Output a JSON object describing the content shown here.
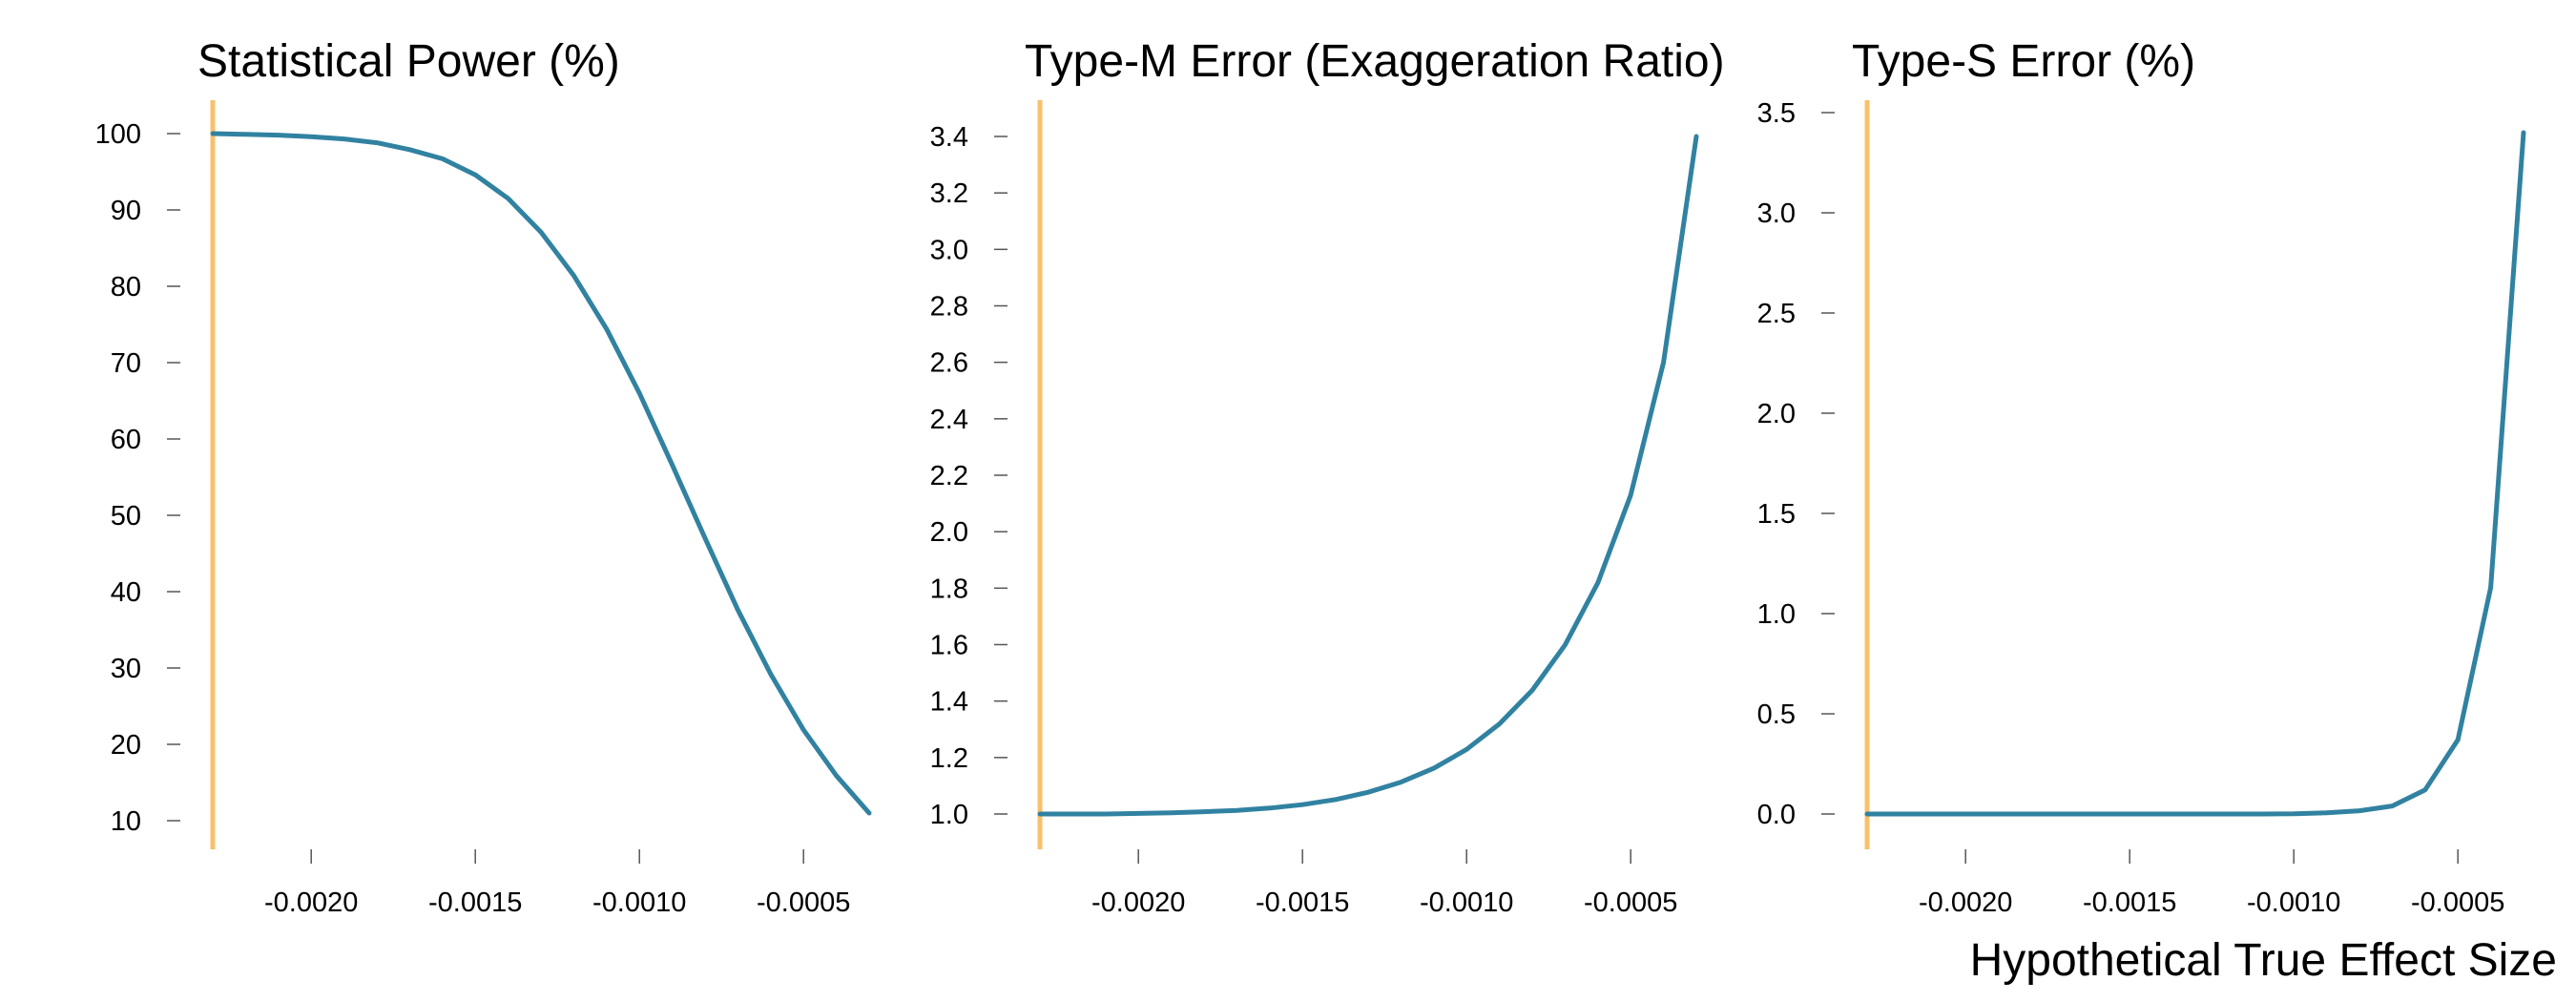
{
  "colors": {
    "series": "#3182A1",
    "reference": "#F9C06B"
  },
  "shared_x": {
    "label": "Hypothetical True Effect Size",
    "reference_value": -0.0023,
    "tick_labels": [
      "-0.0020",
      "-0.0015",
      "-0.0010",
      "-0.0005"
    ],
    "tick_values": [
      -0.002,
      -0.0015,
      -0.001,
      -0.0005
    ]
  },
  "chart_data": [
    {
      "type": "line",
      "title": "Statistical Power (%)",
      "xlim": [
        -0.0023,
        -0.0003
      ],
      "ylim": [
        10,
        100
      ],
      "y_tick_values": [
        10,
        20,
        30,
        40,
        50,
        60,
        70,
        80,
        90,
        100
      ],
      "y_tick_labels": [
        "10",
        "20",
        "30",
        "40",
        "50",
        "60",
        "70",
        "80",
        "90",
        "100"
      ],
      "x": [
        -0.0023,
        -0.0022,
        -0.0021,
        -0.002,
        -0.0019,
        -0.0018,
        -0.0017,
        -0.0016,
        -0.0015,
        -0.0014,
        -0.0013,
        -0.0012,
        -0.0011,
        -0.001,
        -0.0009,
        -0.0008,
        -0.0007,
        -0.0006,
        -0.0005,
        -0.0004,
        -0.0003
      ],
      "y": [
        100,
        99.9,
        99.8,
        99.6,
        99.3,
        98.8,
        97.9,
        96.7,
        94.6,
        91.5,
        87.1,
        81.4,
        74.4,
        66,
        56.6,
        47,
        37.6,
        29.2,
        21.9,
        15.9,
        11
      ]
    },
    {
      "type": "line",
      "title": "Type-M Error (Exaggeration Ratio)",
      "xlim": [
        -0.0023,
        -0.0003
      ],
      "ylim": [
        1.0,
        3.4
      ],
      "y_tick_values": [
        1.0,
        1.2,
        1.4,
        1.6,
        1.8,
        2.0,
        2.2,
        2.4,
        2.6,
        2.8,
        3.0,
        3.2,
        3.4
      ],
      "y_tick_labels": [
        "1.0",
        "1.2",
        "1.4",
        "1.6",
        "1.8",
        "2.0",
        "2.2",
        "2.4",
        "2.6",
        "2.8",
        "3.0",
        "3.2",
        "3.4"
      ],
      "x": [
        -0.0023,
        -0.0022,
        -0.0021,
        -0.002,
        -0.0019,
        -0.0018,
        -0.0017,
        -0.0016,
        -0.0015,
        -0.0014,
        -0.0013,
        -0.0012,
        -0.0011,
        -0.001,
        -0.0009,
        -0.0008,
        -0.0007,
        -0.0006,
        -0.0005,
        -0.0004,
        -0.0003
      ],
      "y": [
        1.0,
        1.0,
        1.0,
        1.002,
        1.004,
        1.008,
        1.013,
        1.021,
        1.033,
        1.051,
        1.077,
        1.113,
        1.162,
        1.229,
        1.319,
        1.438,
        1.599,
        1.819,
        2.13,
        2.6,
        3.4
      ]
    },
    {
      "type": "line",
      "title": "Type-S Error (%)",
      "xlim": [
        -0.0023,
        -0.0003
      ],
      "ylim": [
        0.0,
        3.5
      ],
      "y_tick_values": [
        0.0,
        0.5,
        1.0,
        1.5,
        2.0,
        2.5,
        3.0,
        3.5
      ],
      "y_tick_labels": [
        "0.0",
        "0.5",
        "1.0",
        "1.5",
        "2.0",
        "2.5",
        "3.0",
        "3.5"
      ],
      "x": [
        -0.0023,
        -0.0022,
        -0.0021,
        -0.002,
        -0.0019,
        -0.0018,
        -0.0017,
        -0.0016,
        -0.0015,
        -0.0014,
        -0.0013,
        -0.0012,
        -0.0011,
        -0.001,
        -0.0009,
        -0.0008,
        -0.0007,
        -0.0006,
        -0.0005,
        -0.0004,
        -0.0003
      ],
      "y": [
        0,
        0,
        0,
        0,
        0,
        0,
        0,
        0,
        0,
        0,
        0,
        0,
        0,
        0.001,
        0.006,
        0.016,
        0.04,
        0.12,
        0.37,
        1.13,
        3.4
      ]
    }
  ]
}
